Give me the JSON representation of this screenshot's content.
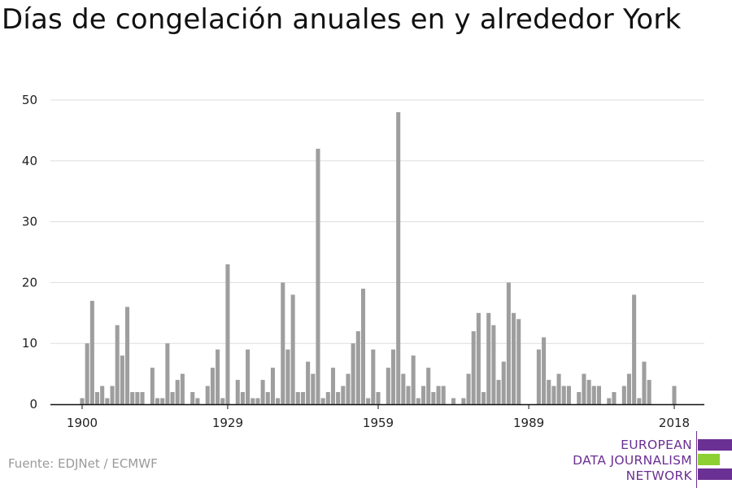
{
  "title": "Días de congelación anuales en y alrededor York",
  "source": "Fuente: EDJNet / ECMWF",
  "logo": {
    "lines": [
      "EUROPEAN",
      "DATA JOURNALISM",
      "NETWORK"
    ],
    "text_color": "#6b3093",
    "bar_colors": [
      "#6b3093",
      "#8cd033",
      "#6b3093"
    ]
  },
  "colors": {
    "bar": "#9e9e9e",
    "grid": "#dddddd",
    "axis": "#111111"
  },
  "chart_data": {
    "type": "bar",
    "title": "Días de congelación anuales en y alrededor York",
    "xlabel": "",
    "ylabel": "",
    "ylim": [
      0,
      50
    ],
    "xlim": [
      1900,
      2018
    ],
    "yticks": [
      0,
      10,
      20,
      30,
      40,
      50
    ],
    "xticks": [
      "1900",
      "1929",
      "1959",
      "1989",
      "2018"
    ],
    "grid": true,
    "categories": [
      1900,
      1901,
      1902,
      1903,
      1904,
      1905,
      1906,
      1907,
      1908,
      1909,
      1910,
      1911,
      1912,
      1913,
      1914,
      1915,
      1916,
      1917,
      1918,
      1919,
      1920,
      1921,
      1922,
      1923,
      1924,
      1925,
      1926,
      1927,
      1928,
      1929,
      1930,
      1931,
      1932,
      1933,
      1934,
      1935,
      1936,
      1937,
      1938,
      1939,
      1940,
      1941,
      1942,
      1943,
      1944,
      1945,
      1946,
      1947,
      1948,
      1949,
      1950,
      1951,
      1952,
      1953,
      1954,
      1955,
      1956,
      1957,
      1958,
      1959,
      1960,
      1961,
      1962,
      1963,
      1964,
      1965,
      1966,
      1967,
      1968,
      1969,
      1970,
      1971,
      1972,
      1973,
      1974,
      1975,
      1976,
      1977,
      1978,
      1979,
      1980,
      1981,
      1982,
      1983,
      1984,
      1985,
      1986,
      1987,
      1988,
      1989,
      1990,
      1991,
      1992,
      1993,
      1994,
      1995,
      1996,
      1997,
      1998,
      1999,
      2000,
      2001,
      2002,
      2003,
      2004,
      2005,
      2006,
      2007,
      2008,
      2009,
      2010,
      2011,
      2012,
      2013,
      2014,
      2015,
      2016,
      2017,
      2018
    ],
    "values": [
      1,
      10,
      17,
      2,
      3,
      1,
      3,
      13,
      8,
      16,
      2,
      2,
      2,
      0,
      6,
      1,
      1,
      10,
      2,
      4,
      5,
      0,
      2,
      1,
      0,
      3,
      6,
      9,
      1,
      23,
      0,
      4,
      2,
      9,
      1,
      1,
      4,
      2,
      6,
      1,
      20,
      9,
      18,
      2,
      2,
      7,
      5,
      42,
      1,
      2,
      6,
      2,
      3,
      5,
      10,
      12,
      19,
      1,
      9,
      2,
      0,
      6,
      9,
      48,
      5,
      3,
      8,
      1,
      3,
      6,
      2,
      3,
      3,
      0,
      1,
      0,
      1,
      5,
      12,
      15,
      2,
      15,
      13,
      4,
      7,
      20,
      15,
      14,
      0,
      0,
      0,
      9,
      11,
      4,
      3,
      5,
      3,
      3,
      0,
      2,
      5,
      4,
      3,
      3,
      0,
      1,
      2,
      0,
      3,
      5,
      18,
      1,
      7,
      4,
      0,
      0,
      0,
      0,
      3
    ]
  }
}
